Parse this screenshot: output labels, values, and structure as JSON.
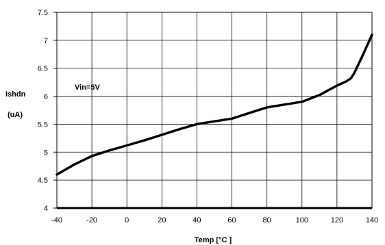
{
  "chart_data": {
    "type": "line",
    "title": "",
    "xlabel": "Temp [°C ]",
    "ylabel_line1": "Ishdn",
    "ylabel_line2": "(uA)",
    "annotation": "Vin=5V",
    "xlim": [
      -40,
      140
    ],
    "ylim": [
      4,
      7.5
    ],
    "x_ticks": [
      "-40",
      "-20",
      "0",
      "20",
      "40",
      "60",
      "80",
      "100",
      "120",
      "140"
    ],
    "y_ticks": [
      "4",
      "4.5",
      "5",
      "5.5",
      "6",
      "6.5",
      "7",
      "7.5"
    ],
    "grid": true,
    "series": [
      {
        "x": [
          -40,
          -30,
          -20,
          -10,
          0,
          10,
          20,
          30,
          40,
          50,
          60,
          70,
          80,
          90,
          100,
          110,
          120,
          125,
          128,
          130,
          135,
          140
        ],
        "y": [
          4.6,
          4.78,
          4.93,
          5.03,
          5.12,
          5.21,
          5.31,
          5.41,
          5.5,
          5.55,
          5.6,
          5.7,
          5.8,
          5.85,
          5.9,
          6.02,
          6.19,
          6.26,
          6.32,
          6.42,
          6.75,
          7.1
        ]
      }
    ]
  }
}
